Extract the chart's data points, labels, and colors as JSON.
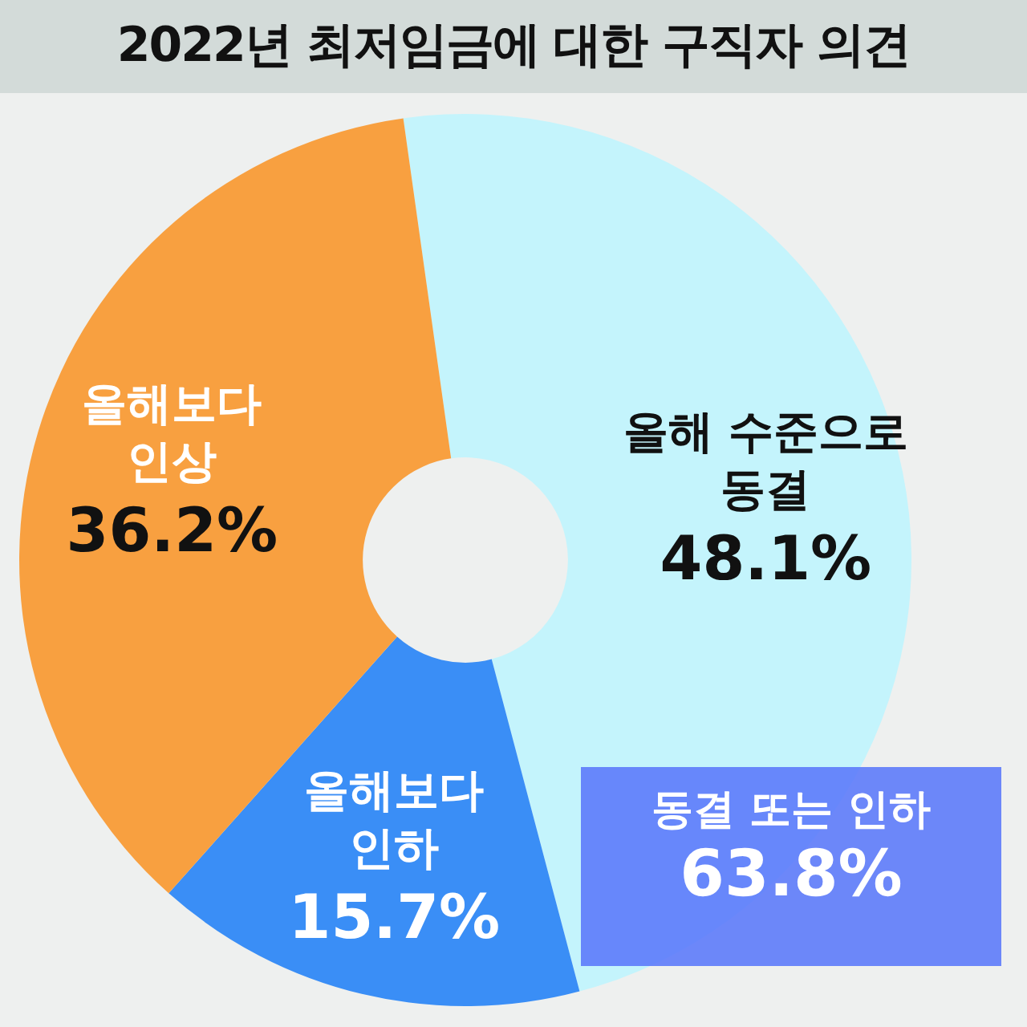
{
  "chart_data": {
    "type": "donut",
    "title": "2022년 최저임금에 대한 구직자 의견",
    "categories": [
      "올해 수준으로 동결",
      "올해보다 인하",
      "올해보다 인상"
    ],
    "values": [
      48.1,
      15.7,
      36.2
    ],
    "colors": [
      "#c4f4fc",
      "#3a8ef6",
      "#f8a040"
    ],
    "value_labels": [
      "48.1%",
      "15.7%",
      "36.2%"
    ],
    "legend": false,
    "annotations": [
      "동결 또는 인하 63.8%"
    ]
  }
}
